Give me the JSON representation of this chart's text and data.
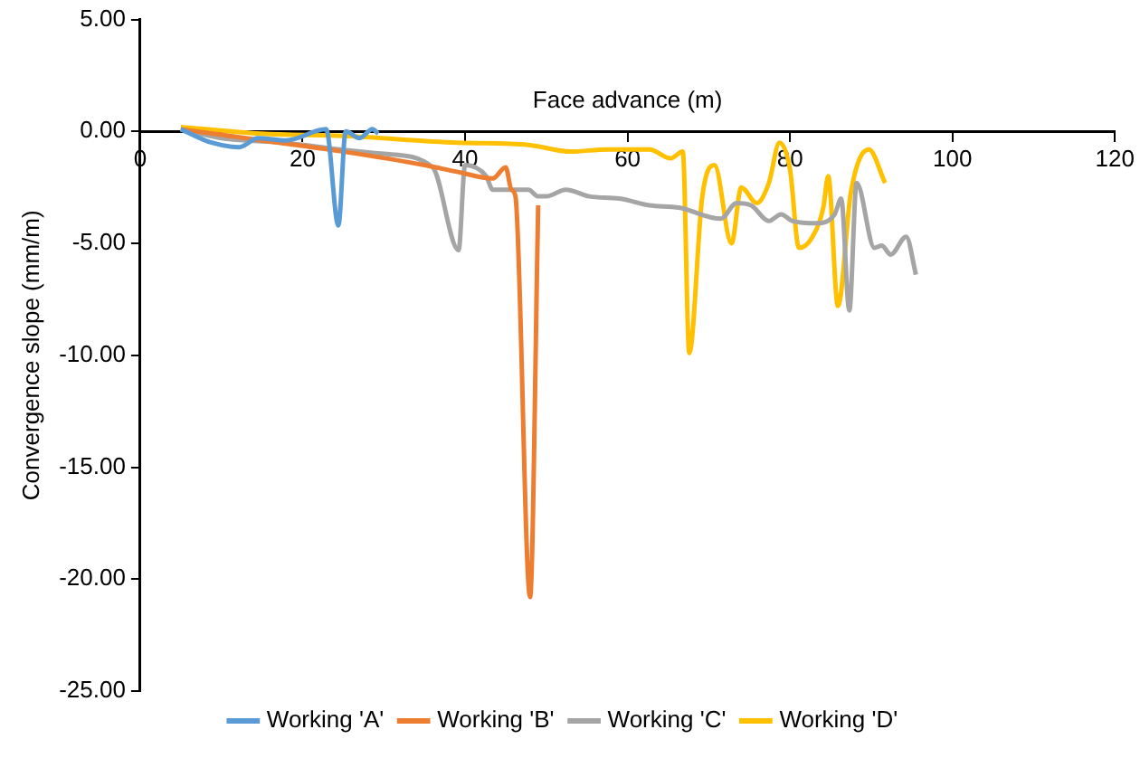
{
  "chart_data": {
    "type": "line",
    "xlabel": "Face advance (m)",
    "ylabel": "Convergence slope (mm/m)",
    "xlim": [
      0,
      120
    ],
    "xticks": [
      0,
      20,
      40,
      60,
      80,
      100,
      120
    ],
    "ylim": [
      -25,
      5
    ],
    "yticks": [
      {
        "value": 5,
        "label": "5.00"
      },
      {
        "value": 0,
        "label": "0.00"
      },
      {
        "value": -5,
        "label": "-5.00"
      },
      {
        "value": -10,
        "label": "-10.00"
      },
      {
        "value": -15,
        "label": "-15.00"
      },
      {
        "value": -20,
        "label": "-20.00"
      },
      {
        "value": -25,
        "label": "-25.00"
      }
    ],
    "grid": false,
    "legend": "bottom",
    "marker": "none",
    "line_style": "solid",
    "series": [
      {
        "name": "Working 'A'",
        "color": "#5b9bd5",
        "x": [
          5,
          8.8,
          12.2,
          14.5,
          18,
          22.9,
          24.4,
          25.3,
          27,
          28.6,
          29.3
        ],
        "values": [
          0.1,
          -0.5,
          -0.7,
          -0.3,
          -0.4,
          0.1,
          -4.2,
          0,
          -0.3,
          0.1,
          -0.1
        ]
      },
      {
        "name": "Working 'B'",
        "color": "#ed7d31",
        "x": [
          5,
          15,
          25,
          35,
          39,
          43.4,
          45,
          45.7,
          46.2,
          48,
          49
        ],
        "values": [
          0.1,
          -0.4,
          -0.9,
          -1.5,
          -1.8,
          -2.1,
          -1.6,
          -2.6,
          -2.9,
          -20.8,
          -3.3
        ]
      },
      {
        "name": "Working 'C'",
        "color": "#a5a5a5",
        "x": [
          5,
          10,
          17.6,
          24.6,
          30,
          36,
          39.2,
          40,
          42.6,
          43.4,
          47.8,
          49,
          50,
          52.4,
          55.3,
          59,
          62.7,
          66.3,
          71.5,
          73.4,
          75.2,
          77.4,
          78.9,
          80.3,
          83.3,
          85.5,
          86.3,
          87.3,
          88.2,
          90.4,
          91.3,
          92.4,
          94.3,
          95.5
        ],
        "values": [
          0.1,
          -0.3,
          -0.5,
          -0.8,
          -1.0,
          -1.6,
          -5.3,
          -1.5,
          -2.0,
          -2.6,
          -2.6,
          -2.9,
          -2.9,
          -2.6,
          -2.9,
          -3.0,
          -3.3,
          -3.4,
          -3.9,
          -3.2,
          -3.3,
          -4.0,
          -3.7,
          -4.0,
          -4.1,
          -3.7,
          -3.0,
          -8.0,
          -2.3,
          -5.2,
          -5.1,
          -5.5,
          -4.7,
          -6.4
        ]
      },
      {
        "name": "Working 'D'",
        "color": "#ffc000",
        "x": [
          5,
          15,
          25,
          39,
          47.8,
          53,
          57.5,
          62.7,
          65.3,
          66.8,
          67.6,
          69.2,
          70.7,
          72.8,
          74,
          75.9,
          77.4,
          78.7,
          80,
          81.1,
          82.6,
          84.1,
          84.7,
          85.9,
          87.5,
          89.7,
          91.7
        ],
        "values": [
          0.2,
          -0.1,
          -0.2,
          -0.5,
          -0.6,
          -0.9,
          -0.8,
          -0.8,
          -1.2,
          -0.9,
          -9.9,
          -2.9,
          -1.5,
          -5.0,
          -2.5,
          -3.2,
          -2.3,
          -0.5,
          -1.7,
          -5.2,
          -4.8,
          -3.4,
          -2.0,
          -7.8,
          -2.7,
          -0.8,
          -2.3
        ]
      }
    ]
  }
}
